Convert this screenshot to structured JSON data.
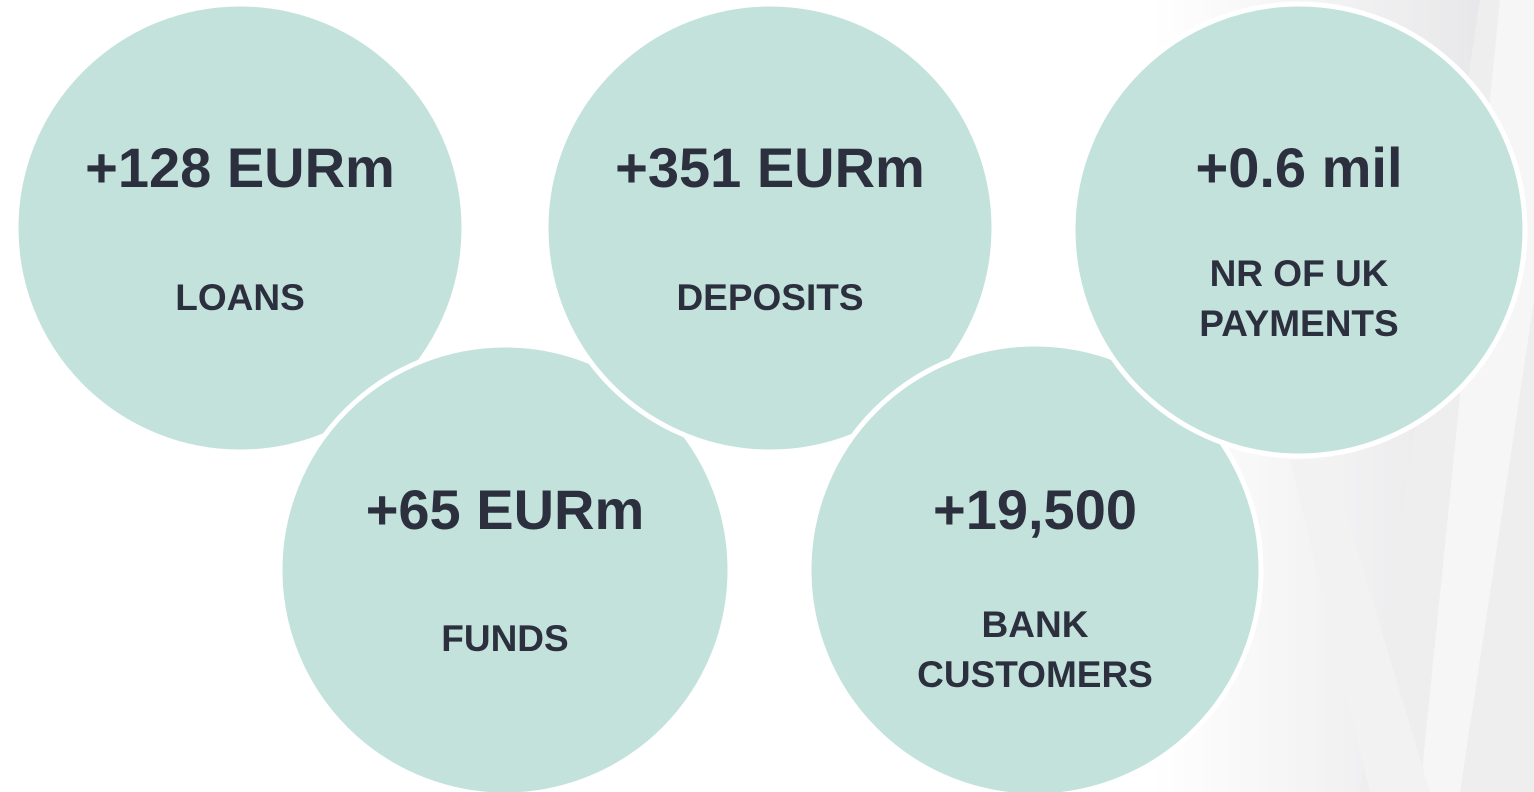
{
  "items": [
    {
      "value": "+128 EURm",
      "label": [
        "LOANS"
      ]
    },
    {
      "value": "+65 EURm",
      "label": [
        "FUNDS"
      ]
    },
    {
      "value": "+351 EURm",
      "label": [
        "DEPOSITS"
      ]
    },
    {
      "value": "+19,500",
      "label": [
        "BANK",
        "CUSTOMERS"
      ]
    },
    {
      "value": "+0.6 mil",
      "label": [
        "NR OF UK",
        "PAYMENTS"
      ]
    }
  ]
}
